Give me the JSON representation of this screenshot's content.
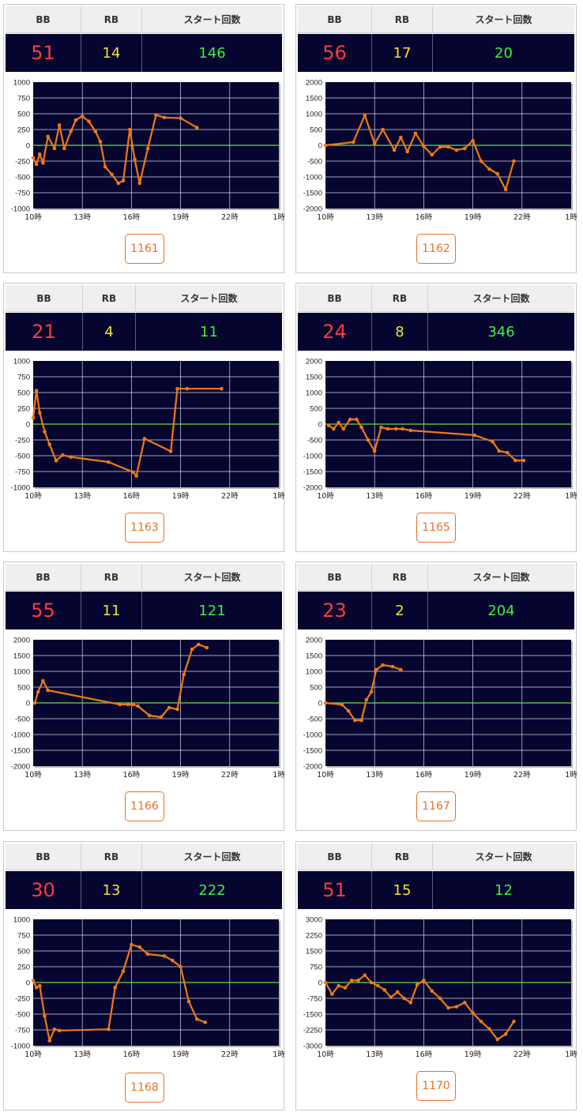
{
  "colors": {
    "bb": "#ff3b3b",
    "rb": "#f2e338",
    "start": "#3df03d",
    "plot_bg": "#050530",
    "line": "#f07818",
    "zero_line": "#66dd44",
    "machine_link": "#e8702a"
  },
  "headers": {
    "bb": "BB",
    "rb": "RB",
    "start": "スタート回数"
  },
  "cards": [
    {
      "bb": "51",
      "rb": "14",
      "start": "146",
      "machine": "1161",
      "chart_data": {
        "type": "line",
        "x_tick_labels": [
          "10時",
          "13時",
          "16時",
          "19時",
          "22時",
          "1時"
        ],
        "xlim": [
          10,
          25
        ],
        "ylim": [
          -1000,
          1000
        ],
        "y_tick_labels": [
          "1000",
          "750",
          "500",
          "250",
          "0",
          "-250",
          "-500",
          "-750",
          "-1000"
        ],
        "x": [
          10.0,
          10.2,
          10.4,
          10.6,
          10.9,
          11.3,
          11.6,
          11.9,
          12.3,
          12.6,
          13.0,
          13.4,
          13.8,
          14.1,
          14.4,
          14.8,
          15.2,
          15.5,
          15.9,
          16.2,
          16.5,
          17.0,
          17.5,
          18.0,
          19.0,
          20.0
        ],
        "y": [
          -200,
          -300,
          -140,
          -280,
          140,
          -50,
          320,
          -50,
          220,
          400,
          460,
          380,
          220,
          60,
          -340,
          -460,
          -600,
          -560,
          250,
          -220,
          -600,
          -50,
          480,
          440,
          430,
          280
        ]
      }
    },
    {
      "bb": "56",
      "rb": "17",
      "start": "20",
      "machine": "1162",
      "chart_data": {
        "type": "line",
        "x_tick_labels": [
          "10時",
          "13時",
          "16時",
          "19時",
          "22時",
          "1時"
        ],
        "xlim": [
          10,
          25
        ],
        "ylim": [
          -2000,
          2000
        ],
        "y_tick_labels": [
          "2000",
          "1500",
          "1000",
          "500",
          "0",
          "-500",
          "-1000",
          "-1500",
          "-2000"
        ],
        "x": [
          10.0,
          11.7,
          12.4,
          13.0,
          13.5,
          14.2,
          14.6,
          15.0,
          15.5,
          16.0,
          16.5,
          17.0,
          17.5,
          18.0,
          18.5,
          19.0,
          19.5,
          20.0,
          20.5,
          21.0,
          21.5
        ],
        "y": [
          0,
          100,
          950,
          50,
          500,
          -150,
          250,
          -200,
          380,
          -30,
          -300,
          -50,
          -50,
          -150,
          -100,
          150,
          -500,
          -750,
          -900,
          -1400,
          -500
        ]
      }
    },
    {
      "bb": "21",
      "rb": "4",
      "start": "11",
      "machine": "1163",
      "chart_data": {
        "type": "line",
        "x_tick_labels": [
          "10時",
          "13時",
          "16時",
          "19時",
          "22時",
          "1時"
        ],
        "xlim": [
          10,
          25
        ],
        "ylim": [
          -1000,
          1000
        ],
        "y_tick_labels": [
          "1000",
          "750",
          "500",
          "250",
          "0",
          "-250",
          "-500",
          "-750",
          "-1000"
        ],
        "x": [
          10.0,
          10.2,
          10.4,
          10.7,
          11.0,
          11.4,
          11.8,
          12.3,
          14.6,
          16.1,
          16.3,
          16.8,
          18.4,
          18.8,
          19.4,
          21.5
        ],
        "y": [
          100,
          530,
          180,
          -120,
          -320,
          -580,
          -490,
          -520,
          -600,
          -760,
          -820,
          -230,
          -430,
          560,
          560,
          560
        ]
      }
    },
    {
      "bb": "24",
      "rb": "8",
      "start": "346",
      "machine": "1165",
      "chart_data": {
        "type": "line",
        "x_tick_labels": [
          "10時",
          "13時",
          "16時",
          "19時",
          "22時",
          "1時"
        ],
        "xlim": [
          10,
          25
        ],
        "ylim": [
          -2000,
          2000
        ],
        "y_tick_labels": [
          "2000",
          "1500",
          "1000",
          "500",
          "0",
          "-500",
          "-1000",
          "-1500",
          "-2000"
        ],
        "x": [
          10.2,
          10.5,
          10.8,
          11.1,
          11.5,
          11.9,
          12.2,
          12.6,
          13.0,
          13.4,
          13.8,
          14.3,
          14.7,
          15.2,
          19.1,
          20.2,
          20.6,
          21.1,
          21.6,
          22.1
        ],
        "y": [
          -40,
          -150,
          50,
          -150,
          150,
          150,
          -100,
          -500,
          -850,
          -100,
          -150,
          -150,
          -150,
          -200,
          -350,
          -550,
          -850,
          -900,
          -1150,
          -1150
        ]
      }
    },
    {
      "bb": "55",
      "rb": "11",
      "start": "121",
      "machine": "1166",
      "chart_data": {
        "type": "line",
        "x_tick_labels": [
          "10時",
          "13時",
          "16時",
          "19時",
          "22時",
          "1時"
        ],
        "xlim": [
          10,
          25
        ],
        "ylim": [
          -2000,
          2000
        ],
        "y_tick_labels": [
          "2000",
          "1500",
          "1000",
          "500",
          "0",
          "-500",
          "-1000",
          "-1500",
          "-2000"
        ],
        "x": [
          10.1,
          10.3,
          10.6,
          10.9,
          15.3,
          15.8,
          16.1,
          16.4,
          17.1,
          17.8,
          18.3,
          18.8,
          19.2,
          19.7,
          20.1,
          20.6
        ],
        "y": [
          0,
          350,
          700,
          400,
          -50,
          -50,
          -50,
          -100,
          -400,
          -450,
          -150,
          -200,
          900,
          1700,
          1850,
          1750
        ]
      }
    },
    {
      "bb": "23",
      "rb": "2",
      "start": "204",
      "machine": "1167",
      "chart_data": {
        "type": "line",
        "x_tick_labels": [
          "10時",
          "13時",
          "16時",
          "19時",
          "22時",
          "1時"
        ],
        "xlim": [
          10,
          25
        ],
        "ylim": [
          -2000,
          2000
        ],
        "y_tick_labels": [
          "2000",
          "1500",
          "1000",
          "500",
          "0",
          "-500",
          "-1000",
          "-1500",
          "-2000"
        ],
        "x": [
          10.0,
          11.0,
          11.4,
          11.8,
          12.2,
          12.5,
          12.8,
          13.1,
          13.5,
          14.1,
          14.6
        ],
        "y": [
          0,
          -50,
          -250,
          -550,
          -550,
          100,
          350,
          1050,
          1200,
          1150,
          1050
        ]
      }
    },
    {
      "bb": "30",
      "rb": "13",
      "start": "222",
      "machine": "1168",
      "chart_data": {
        "type": "line",
        "x_tick_labels": [
          "10時",
          "13時",
          "16時",
          "19時",
          "22時",
          "1時"
        ],
        "xlim": [
          10,
          25
        ],
        "ylim": [
          -1000,
          1000
        ],
        "y_tick_labels": [
          "1000",
          "750",
          "500",
          "250",
          "0",
          "-250",
          "-500",
          "-750",
          "-1000"
        ],
        "x": [
          10.0,
          10.2,
          10.4,
          10.7,
          11.0,
          11.3,
          11.6,
          14.6,
          15.0,
          15.5,
          16.0,
          16.5,
          17.0,
          18.0,
          18.5,
          19.0,
          19.5,
          20.0,
          20.5
        ],
        "y": [
          30,
          -80,
          -50,
          -530,
          -920,
          -740,
          -760,
          -740,
          -80,
          180,
          600,
          560,
          450,
          420,
          350,
          250,
          -300,
          -580,
          -630
        ]
      }
    },
    {
      "bb": "51",
      "rb": "15",
      "start": "12",
      "machine": "1170",
      "chart_data": {
        "type": "line",
        "x_tick_labels": [
          "10時",
          "13時",
          "16時",
          "19時",
          "22時",
          "1時"
        ],
        "xlim": [
          10,
          25
        ],
        "ylim": [
          -3000,
          3000
        ],
        "y_tick_labels": [
          "3000",
          "2250",
          "1500",
          "750",
          "0",
          "-750",
          "-1500",
          "-2250",
          "-3000"
        ],
        "x": [
          10.0,
          10.4,
          10.8,
          11.2,
          11.6,
          12.0,
          12.4,
          12.8,
          13.2,
          13.6,
          14.0,
          14.4,
          14.8,
          15.2,
          15.6,
          16.0,
          16.5,
          17.0,
          17.5,
          18.0,
          18.5,
          19.0,
          19.5,
          20.0,
          20.5,
          21.0,
          21.5
        ],
        "y": [
          0,
          -550,
          -150,
          -250,
          100,
          100,
          350,
          0,
          -150,
          -350,
          -700,
          -450,
          -750,
          -950,
          -100,
          100,
          -400,
          -750,
          -1200,
          -1150,
          -950,
          -1450,
          -1850,
          -2200,
          -2700,
          -2450,
          -1850
        ]
      }
    }
  ]
}
